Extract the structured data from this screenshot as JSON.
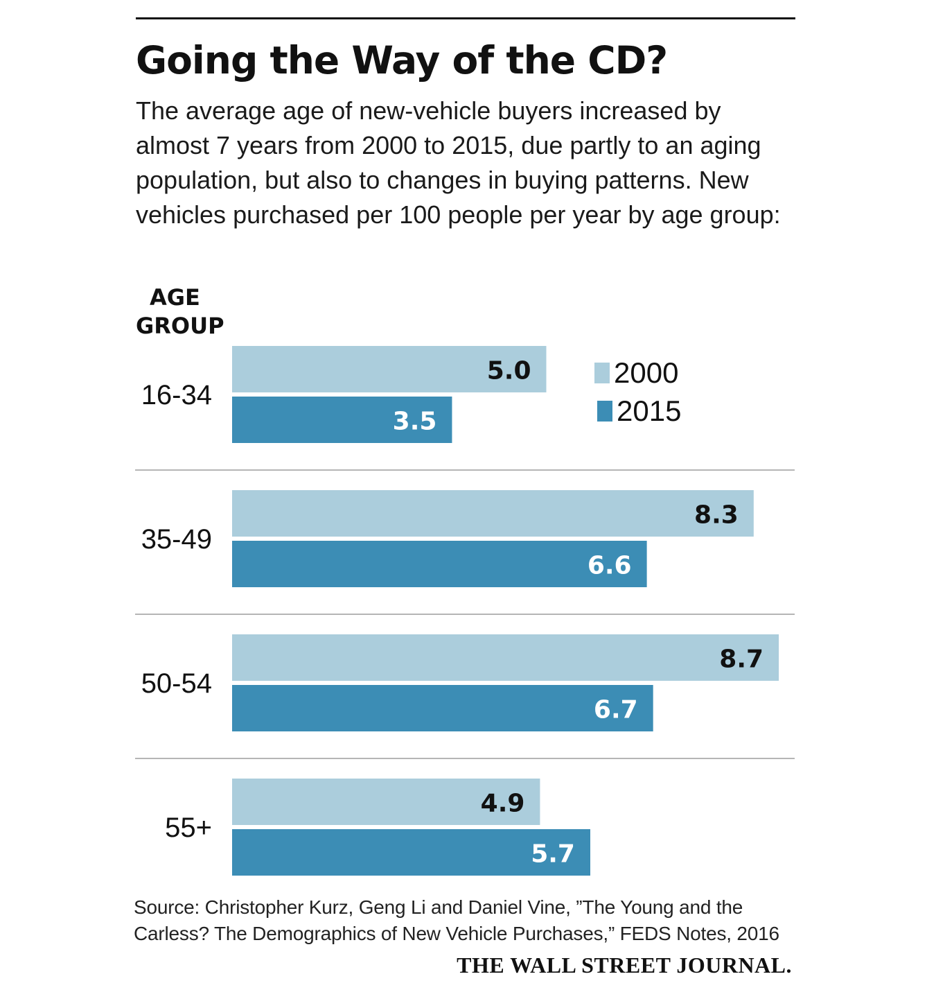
{
  "title": "Going the Way of the CD?",
  "subtitle": "The average age of new-vehicle buyers increased by almost 7 years from 2000 to 2015, due partly to an aging population, but also to changes in buying patterns. New vehicles purchased per 100 people per year by age group:",
  "axis_title": {
    "line1": "AGE",
    "line2": "GROUP"
  },
  "legend": {
    "item_2000": "2000",
    "item_2015": "2015"
  },
  "source": "Source: Christopher Kurz, Geng Li and Daniel Vine, ”The Young and the Carless? The Demographics of New Vehicle Purchases,” FEDS Notes, 2016",
  "logo": "THE WALL STREET JOURNAL.",
  "colors": {
    "series_2000": "#abcddc",
    "series_2015": "#3c8db5",
    "separator": "#b5b5b5"
  },
  "chart_data": {
    "type": "bar",
    "orientation": "horizontal",
    "title": "Going the Way of the CD?",
    "ylabel": "AGE GROUP",
    "categories": [
      "16-34",
      "35-49",
      "50-54",
      "55+"
    ],
    "series": [
      {
        "name": "2000",
        "values": [
          5.0,
          8.3,
          8.7,
          4.9
        ],
        "labels": [
          "5.0",
          "8.3",
          "8.7",
          "4.9"
        ]
      },
      {
        "name": "2015",
        "values": [
          3.5,
          6.6,
          6.7,
          5.7
        ],
        "labels": [
          "3.5",
          "6.6",
          "6.7",
          "5.7"
        ]
      }
    ],
    "legend_position": "top-right",
    "grid": false
  }
}
